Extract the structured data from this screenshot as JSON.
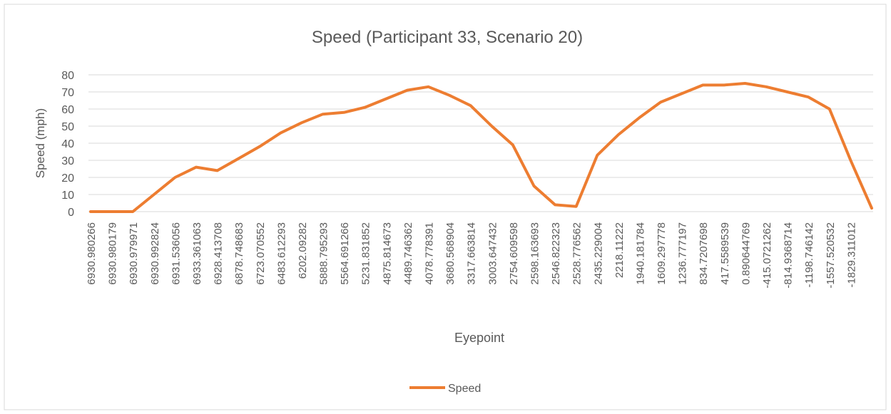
{
  "chart_data": {
    "type": "line",
    "title": "Speed (Participant 33, Scenario 20)",
    "x_label": "Eyepoint",
    "y_label": "Speed (mph)",
    "categories": [
      "6930.980266",
      "6930.980179",
      "6930.979971",
      "6930.992824",
      "6931.536056",
      "6933.361063",
      "6928.413708",
      "6878.748683",
      "6723.070552",
      "6483.612293",
      "6202.09282",
      "5888.795293",
      "5564.691266",
      "5231.831852",
      "4875.814673",
      "4489.746362",
      "4078.778391",
      "3680.568904",
      "3317.663814",
      "3003.647432",
      "2754.609598",
      "2598.163693",
      "2546.822323",
      "2528.776562",
      "2435.229004",
      "2218.11222",
      "1940.181784",
      "1609.297778",
      "1236.777197",
      "834.7207698",
      "417.5589539",
      "0.890644769",
      "-415.0721262",
      "-814.9368714",
      "-1198.746142",
      "-1557.520532",
      "-1829.311012",
      null
    ],
    "series": [
      {
        "name": "Speed",
        "color": "#ed7d31",
        "values": [
          0,
          0,
          0,
          10,
          20,
          26,
          24,
          31,
          38,
          46,
          52,
          57,
          58,
          61,
          66,
          71,
          73,
          68,
          62,
          50,
          39,
          15,
          4,
          3,
          33,
          45,
          55,
          64,
          69,
          74,
          74,
          75,
          73,
          70,
          67,
          60,
          30,
          2
        ]
      }
    ],
    "ylim": [
      0,
      80
    ],
    "yticks": [
      0,
      10,
      20,
      30,
      40,
      50,
      60,
      70,
      80
    ],
    "grid": true
  }
}
